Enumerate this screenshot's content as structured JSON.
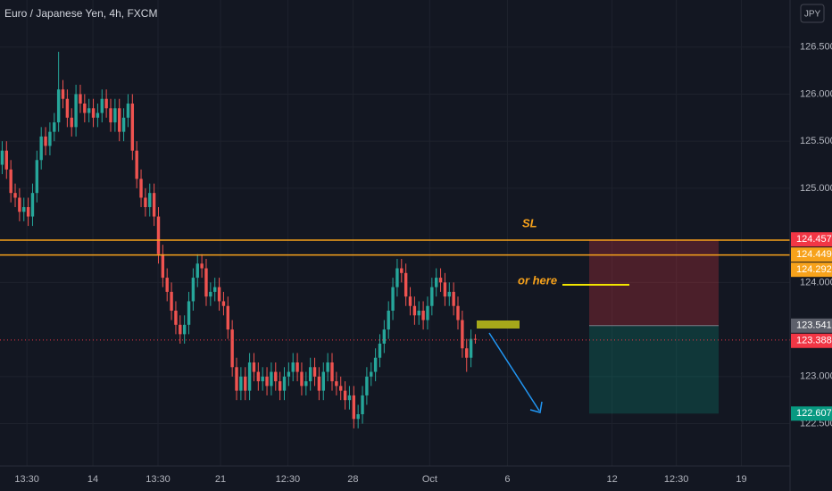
{
  "chart_data": {
    "type": "candlestick",
    "title": "Euro / Japanese Yen, 4h, FXCM",
    "currency": "JPY",
    "up_color": "#26a69a",
    "down_color": "#ef5350",
    "grid": true,
    "xlim": [
      0,
      182
    ],
    "xticks": [
      {
        "value": 6.2,
        "label": "13:30"
      },
      {
        "value": 21.4,
        "label": "14"
      },
      {
        "value": 36.4,
        "label": "13:30"
      },
      {
        "value": 50.8,
        "label": "21"
      },
      {
        "value": 66.3,
        "label": "12:30"
      },
      {
        "value": 81.3,
        "label": "28"
      },
      {
        "value": 99,
        "label": "Oct"
      },
      {
        "value": 116.9,
        "label": "6"
      },
      {
        "value": 141,
        "label": "12"
      },
      {
        "value": 155.8,
        "label": "12:30"
      },
      {
        "value": 170.8,
        "label": "19"
      }
    ],
    "ylim": [
      122.05,
      127.0
    ],
    "yticks": [
      {
        "value": 122.5,
        "label": "122.500"
      },
      {
        "value": 123,
        "label": "123.000"
      },
      {
        "value": 124,
        "label": "124.000"
      },
      {
        "value": 125,
        "label": "125.000"
      },
      {
        "value": 125.5,
        "label": "125.500"
      },
      {
        "value": 126,
        "label": "126.000"
      },
      {
        "value": 126.5,
        "label": "126.500"
      }
    ],
    "open": [
      125.25,
      125.4,
      125.2,
      124.95,
      124.9,
      124.75,
      124.8,
      124.7,
      124.95,
      125.3,
      125.55,
      125.45,
      125.6,
      125.7,
      126.05,
      125.95,
      125.75,
      125.65,
      126.0,
      125.9,
      125.8,
      125.85,
      125.75,
      125.8,
      125.95,
      125.85,
      125.7,
      125.85,
      125.6,
      125.75,
      125.9,
      125.4,
      125.1,
      124.9,
      124.8,
      124.95,
      124.7,
      124.3,
      124.05,
      123.9,
      123.7,
      123.55,
      123.45,
      123.55,
      123.8,
      124.05,
      124.2,
      124.15,
      123.85,
      123.9,
      123.95,
      123.8,
      123.75,
      123.5,
      123.1,
      122.85,
      123.0,
      122.85,
      123.15,
      123.05,
      122.95,
      123.0,
      122.9,
      123.05,
      122.95,
      122.85,
      123.0,
      123.05,
      123.15,
      123.05,
      122.9,
      122.95,
      123.1,
      123.0,
      122.85,
      123.05,
      123.15,
      122.95,
      122.9,
      122.85,
      122.75,
      122.8,
      122.55,
      122.6,
      122.8,
      123.0,
      123.05,
      123.2,
      123.35,
      123.5,
      123.7,
      123.95,
      124.15,
      124.1,
      123.85,
      123.75,
      123.65,
      123.7,
      123.6,
      123.75,
      123.95,
      124.05,
      124.0,
      123.85,
      123.9,
      123.75,
      123.6,
      123.3,
      123.2,
      123.4
    ],
    "high": [
      125.5,
      125.5,
      125.3,
      125.05,
      125.0,
      124.9,
      124.9,
      125.05,
      125.4,
      125.65,
      125.65,
      125.7,
      125.8,
      126.45,
      126.15,
      126.05,
      125.85,
      126.1,
      126.1,
      126.0,
      125.95,
      125.95,
      125.9,
      126.05,
      126.05,
      125.95,
      125.95,
      125.95,
      125.85,
      126.0,
      126.0,
      125.5,
      125.2,
      125.0,
      125.05,
      125.05,
      124.8,
      124.4,
      124.15,
      124.0,
      123.8,
      123.65,
      123.65,
      123.9,
      124.15,
      124.3,
      124.3,
      124.25,
      124.0,
      124.05,
      124.05,
      123.9,
      123.85,
      123.6,
      123.2,
      123.1,
      123.1,
      123.25,
      123.25,
      123.15,
      123.1,
      123.1,
      123.15,
      123.15,
      123.05,
      123.1,
      123.15,
      123.25,
      123.25,
      123.15,
      123.05,
      123.2,
      123.2,
      123.1,
      123.15,
      123.25,
      123.25,
      123.05,
      123.0,
      122.95,
      122.9,
      122.9,
      122.7,
      122.9,
      123.1,
      123.15,
      123.3,
      123.45,
      123.6,
      123.8,
      124.05,
      124.25,
      124.25,
      124.2,
      123.95,
      123.85,
      123.8,
      123.8,
      123.85,
      124.05,
      124.15,
      124.15,
      124.1,
      124.0,
      124.0,
      123.85,
      123.7,
      123.4,
      123.5,
      123.45
    ],
    "low": [
      125.15,
      125.1,
      124.85,
      124.8,
      124.65,
      124.65,
      124.6,
      124.6,
      124.85,
      125.2,
      125.35,
      125.35,
      125.5,
      125.6,
      125.85,
      125.65,
      125.55,
      125.55,
      125.8,
      125.7,
      125.7,
      125.65,
      125.65,
      125.7,
      125.75,
      125.6,
      125.6,
      125.5,
      125.5,
      125.65,
      125.3,
      125.0,
      124.8,
      124.7,
      124.7,
      124.6,
      124.2,
      123.95,
      123.8,
      123.6,
      123.45,
      123.35,
      123.35,
      123.45,
      123.7,
      123.95,
      124.05,
      123.75,
      123.75,
      123.8,
      123.7,
      123.65,
      123.4,
      123.0,
      122.75,
      122.75,
      122.75,
      122.75,
      122.95,
      122.85,
      122.85,
      122.8,
      122.8,
      122.85,
      122.75,
      122.75,
      122.9,
      122.95,
      122.95,
      122.8,
      122.8,
      122.85,
      122.9,
      122.75,
      122.75,
      122.95,
      122.85,
      122.8,
      122.75,
      122.65,
      122.65,
      122.45,
      122.45,
      122.5,
      122.7,
      122.9,
      122.95,
      123.1,
      123.25,
      123.4,
      123.6,
      123.85,
      124.0,
      123.75,
      123.65,
      123.55,
      123.55,
      123.5,
      123.5,
      123.65,
      123.85,
      123.9,
      123.75,
      123.75,
      123.65,
      123.5,
      123.2,
      123.05,
      123.1,
      123.35
    ],
    "close": [
      125.4,
      125.2,
      124.95,
      124.9,
      124.75,
      124.8,
      124.7,
      124.95,
      125.3,
      125.55,
      125.45,
      125.6,
      125.7,
      126.05,
      125.95,
      125.75,
      125.65,
      126.0,
      125.9,
      125.8,
      125.85,
      125.75,
      125.8,
      125.95,
      125.85,
      125.7,
      125.85,
      125.6,
      125.75,
      125.9,
      125.4,
      125.1,
      124.9,
      124.8,
      124.95,
      124.7,
      124.3,
      124.05,
      123.9,
      123.7,
      123.55,
      123.45,
      123.55,
      123.8,
      124.05,
      124.2,
      124.15,
      123.85,
      123.9,
      123.95,
      123.8,
      123.75,
      123.5,
      123.1,
      122.85,
      123.0,
      122.85,
      123.15,
      123.05,
      122.95,
      123.0,
      122.9,
      123.05,
      122.95,
      122.85,
      123.0,
      123.05,
      123.15,
      123.05,
      122.9,
      122.95,
      123.1,
      123.0,
      122.85,
      123.05,
      123.15,
      122.95,
      122.9,
      122.85,
      122.75,
      122.8,
      122.55,
      122.6,
      122.8,
      123.0,
      123.05,
      123.2,
      123.35,
      123.5,
      123.7,
      123.95,
      124.15,
      124.1,
      123.85,
      123.75,
      123.65,
      123.7,
      123.6,
      123.75,
      123.95,
      124.05,
      124.0,
      123.85,
      123.9,
      123.75,
      123.6,
      123.3,
      123.2,
      123.4,
      123.39
    ],
    "price_lines": [
      {
        "value": 124.449,
        "label": "124.449",
        "color": "#f7a21b"
      },
      {
        "value": 124.292,
        "label": "124.292",
        "color": "#f7a21b"
      }
    ],
    "position": {
      "stop": {
        "value": 124.457,
        "label": "124.457",
        "color": "#f23645"
      },
      "entry": {
        "value": 123.541,
        "label": "123.541",
        "color": "#5d606b"
      },
      "target": {
        "value": 122.607,
        "label": "122.607",
        "color": "#089981"
      }
    },
    "last_price": {
      "value": 123.388,
      "label": "123.388",
      "color": "#f23645"
    },
    "annotations": [
      "SL",
      "or here"
    ]
  }
}
